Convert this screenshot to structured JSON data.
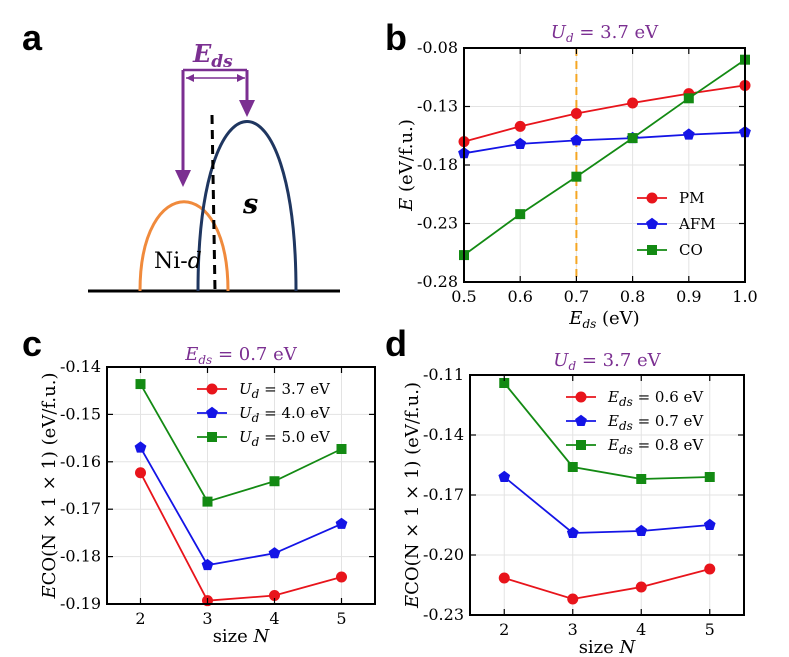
{
  "panel_labels": {
    "a": "a",
    "b": "b",
    "c": "c",
    "d": "d"
  },
  "schematic": {
    "arrow_label": "E",
    "arrow_label_sub": "ds",
    "left_band": "Ni-",
    "left_band_italic": "d",
    "right_band": "s",
    "colors": {
      "left": "#f08a3c",
      "right": "#1f3660",
      "arrow": "#7b2f91"
    }
  },
  "chart_data": [
    {
      "id": "b",
      "type": "line",
      "title_main": "U",
      "title_sub": "d",
      "title_rest": " = 3.7 eV",
      "xlabel_main": "E",
      "xlabel_sub": "ds",
      "xlabel_rest": " (eV)",
      "ylabel_main": "E",
      "ylabel_rest": " (eV/f.u.)",
      "xlim": [
        0.5,
        1.0
      ],
      "ylim": [
        -0.28,
        -0.08
      ],
      "xticks": [
        0.5,
        0.6,
        0.7,
        0.8,
        0.9,
        1.0
      ],
      "xtick_labels": [
        "0.5",
        "0.6",
        "0.7",
        "0.8",
        "0.9",
        "1.0"
      ],
      "yticks": [
        -0.28,
        -0.23,
        -0.18,
        -0.13,
        -0.08
      ],
      "ytick_labels": [
        "-0.28",
        "-0.23",
        "-0.18",
        "-0.13",
        "-0.08"
      ],
      "vline": 0.7,
      "vline_color": "#f5a623",
      "legend_pos": "lower-right",
      "series": [
        {
          "name": "PM",
          "color": "#e8141b",
          "marker": "circle",
          "x": [
            0.5,
            0.6,
            0.7,
            0.8,
            0.9,
            1.0
          ],
          "y": [
            -0.16,
            -0.147,
            -0.136,
            -0.127,
            -0.119,
            -0.112
          ]
        },
        {
          "name": "AFM",
          "color": "#1414e6",
          "marker": "pentagon",
          "x": [
            0.5,
            0.6,
            0.7,
            0.8,
            0.9,
            1.0
          ],
          "y": [
            -0.17,
            -0.162,
            -0.159,
            -0.157,
            -0.154,
            -0.152
          ]
        },
        {
          "name": "CO",
          "color": "#138a13",
          "marker": "square",
          "x": [
            0.5,
            0.6,
            0.7,
            0.8,
            0.9,
            1.0
          ],
          "y": [
            -0.257,
            -0.222,
            -0.19,
            -0.157,
            -0.123,
            -0.09
          ]
        }
      ]
    },
    {
      "id": "c",
      "type": "line",
      "title_main": "E",
      "title_sub": "ds",
      "title_rest": " = 0.7 eV",
      "xlabel_main": "size ",
      "xlabel_sub": "",
      "xlabel_rest": "N",
      "ylabel_main": "E",
      "ylabel_rest": "CO(N × 1 × 1) (eV/f.u.)",
      "xlim": [
        1.5,
        5.5
      ],
      "ylim": [
        -0.19,
        -0.14
      ],
      "xticks": [
        2,
        3,
        4,
        5
      ],
      "xtick_labels": [
        "2",
        "3",
        "4",
        "5"
      ],
      "yticks": [
        -0.19,
        -0.18,
        -0.17,
        -0.16,
        -0.15,
        -0.14
      ],
      "ytick_labels": [
        "-0.19",
        "-0.18",
        "-0.17",
        "-0.16",
        "-0.15",
        "-0.14"
      ],
      "legend_pos": "top-right",
      "series": [
        {
          "name": "Ud = 3.7 eV",
          "name_main": "U",
          "name_sub": "d",
          "name_rest": " = 3.7 eV",
          "color": "#e8141b",
          "marker": "circle",
          "x": [
            2,
            3,
            4,
            5
          ],
          "y": [
            -0.1623,
            -0.1893,
            -0.1882,
            -0.1843
          ]
        },
        {
          "name": "Ud = 4.0 eV",
          "name_main": "U",
          "name_sub": "d",
          "name_rest": " = 4.0 eV",
          "color": "#1414e6",
          "marker": "pentagon",
          "x": [
            2,
            3,
            4,
            5
          ],
          "y": [
            -0.157,
            -0.1818,
            -0.1793,
            -0.1731
          ]
        },
        {
          "name": "Ud = 5.0 eV",
          "name_main": "U",
          "name_sub": "d",
          "name_rest": " = 5.0 eV",
          "color": "#138a13",
          "marker": "square",
          "x": [
            2,
            3,
            4,
            5
          ],
          "y": [
            -0.1436,
            -0.1684,
            -0.1641,
            -0.1573
          ]
        }
      ]
    },
    {
      "id": "d",
      "type": "line",
      "title_main": "U",
      "title_sub": "d",
      "title_rest": " = 3.7 eV",
      "xlabel_main": "size ",
      "xlabel_sub": "",
      "xlabel_rest": "N",
      "ylabel_main": "E",
      "ylabel_rest": "CO(N × 1 × 1) (eV/f.u.)",
      "xlim": [
        1.5,
        5.5
      ],
      "ylim": [
        -0.23,
        -0.11
      ],
      "xticks": [
        2,
        3,
        4,
        5
      ],
      "xtick_labels": [
        "2",
        "3",
        "4",
        "5"
      ],
      "yticks": [
        -0.23,
        -0.2,
        -0.17,
        -0.14,
        -0.11
      ],
      "ytick_labels": [
        "-0.23",
        "-0.20",
        "-0.17",
        "-0.14",
        "-0.11"
      ],
      "legend_pos": "top-right",
      "series": [
        {
          "name": "Eds = 0.6 eV",
          "name_main": "E",
          "name_sub": "ds",
          "name_rest": " = 0.6 eV",
          "color": "#e8141b",
          "marker": "circle",
          "x": [
            2,
            3,
            4,
            5
          ],
          "y": [
            -0.2115,
            -0.222,
            -0.216,
            -0.207
          ]
        },
        {
          "name": "Eds = 0.7 eV",
          "name_main": "E",
          "name_sub": "ds",
          "name_rest": " = 0.7 eV",
          "color": "#1414e6",
          "marker": "pentagon",
          "x": [
            2,
            3,
            4,
            5
          ],
          "y": [
            -0.161,
            -0.189,
            -0.188,
            -0.185
          ]
        },
        {
          "name": "Eds = 0.8 eV",
          "name_main": "E",
          "name_sub": "ds",
          "name_rest": " = 0.8 eV",
          "color": "#138a13",
          "marker": "square",
          "x": [
            2,
            3,
            4,
            5
          ],
          "y": [
            -0.114,
            -0.156,
            -0.162,
            -0.161
          ]
        }
      ]
    }
  ]
}
